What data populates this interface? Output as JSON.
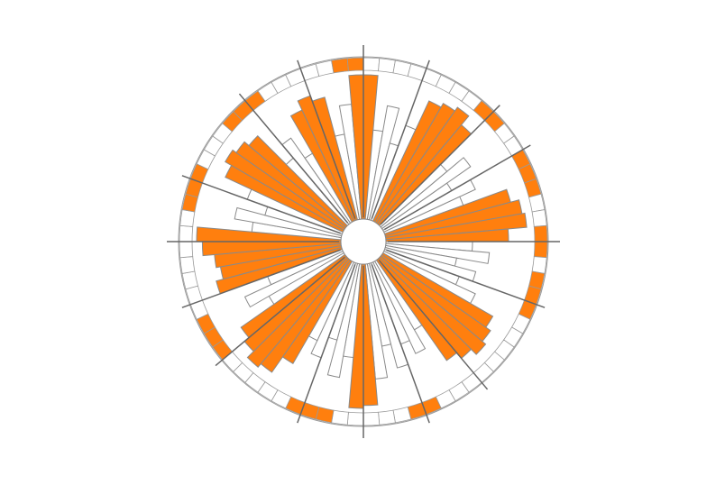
{
  "chart_data": {
    "type": "radial-bar",
    "values": [
      100,
      62,
      80,
      55,
      70,
      92,
      95,
      98,
      90,
      60,
      75,
      55,
      70,
      58,
      90,
      96,
      98,
      85,
      60,
      72,
      50,
      65,
      55,
      70,
      88,
      92,
      95,
      90,
      85,
      55,
      70,
      60,
      75,
      58,
      80,
      98,
      100,
      65,
      80,
      55,
      70,
      60,
      82,
      95,
      98,
      92,
      88,
      60,
      75,
      55,
      90,
      85,
      88,
      96,
      100,
      62,
      75,
      55,
      70,
      90,
      95,
      92,
      88,
      60,
      72,
      55,
      85,
      92,
      88,
      60,
      80,
      100
    ],
    "rlim": [
      0,
      100
    ],
    "color": "#ffffff",
    "highlight_color": "#ff7f0e",
    "highlight": [
      true,
      false,
      false,
      false,
      false,
      true,
      true,
      true,
      true,
      false,
      false,
      false,
      false,
      false,
      true,
      true,
      true,
      true,
      false,
      false,
      false,
      false,
      false,
      false,
      true,
      true,
      true,
      true,
      true,
      false,
      false,
      false,
      false,
      false,
      false,
      true,
      true,
      false,
      false,
      false,
      false,
      false,
      true,
      true,
      true,
      true,
      true,
      false,
      false,
      false,
      true,
      true,
      true,
      true,
      true,
      false,
      false,
      false,
      false,
      true,
      true,
      true,
      true,
      false,
      false,
      false,
      true,
      true,
      true,
      false,
      false,
      true
    ],
    "ring": [
      false,
      false,
      false,
      false,
      false,
      false,
      false,
      false,
      true,
      true,
      false,
      false,
      true,
      true,
      true,
      false,
      false,
      true,
      true,
      false,
      true,
      true,
      true,
      false,
      false,
      false,
      false,
      false,
      false,
      false,
      false,
      true,
      true,
      false,
      false,
      false,
      false,
      false,
      true,
      true,
      true,
      false,
      false,
      false,
      false,
      false,
      true,
      true,
      true,
      false,
      false,
      false,
      false,
      false,
      false,
      false,
      true,
      true,
      true,
      false,
      false,
      false,
      true,
      true,
      true,
      false,
      false,
      false,
      false,
      false,
      true,
      true
    ]
  }
}
